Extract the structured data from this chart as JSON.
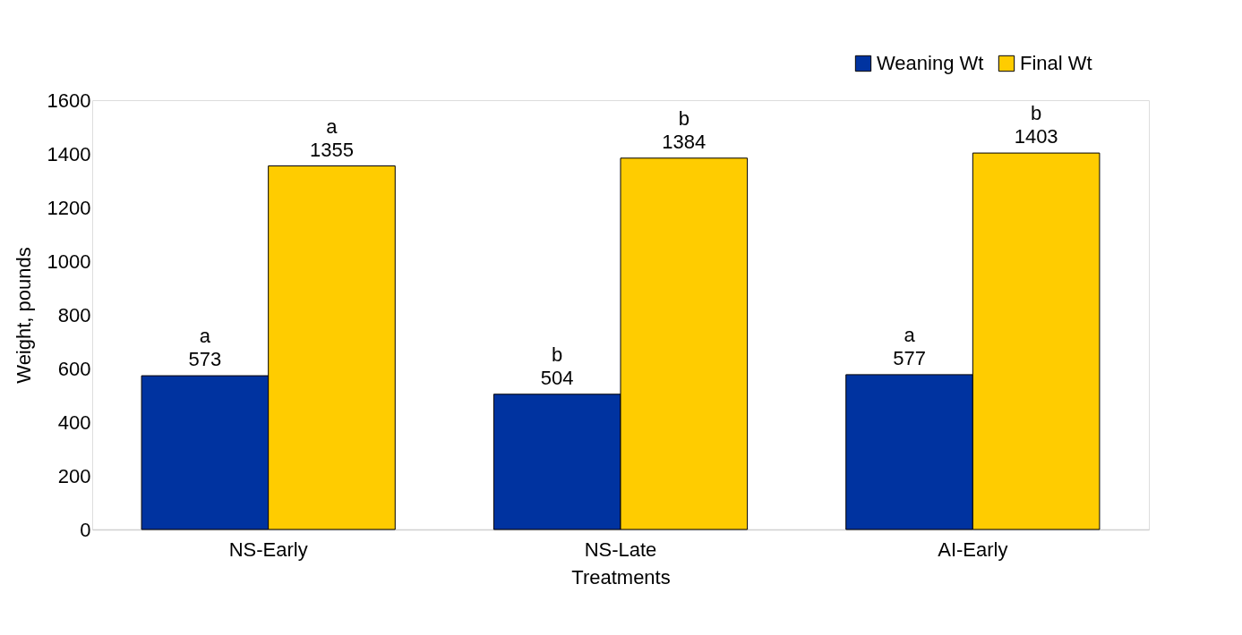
{
  "chart_data": {
    "type": "bar",
    "xlabel": "Treatments",
    "ylabel": "Weight, pounds",
    "categories": [
      "NS-Early",
      "NS-Late",
      "AI-Early"
    ],
    "series": [
      {
        "name": "Weaning Wt",
        "color": "#0033a0",
        "values": [
          573,
          504,
          577
        ],
        "value_labels": [
          "a\n573",
          "b\n504",
          "a\n577"
        ]
      },
      {
        "name": "Final Wt",
        "color": "#ffcc00",
        "values": [
          1355,
          1384,
          1403
        ],
        "value_labels": [
          "a\n1355",
          "b\n1384",
          "b\n1403"
        ]
      }
    ],
    "ylim": [
      0,
      1600
    ],
    "yticks": [
      0,
      200,
      400,
      600,
      800,
      1000,
      1200,
      1400,
      1600
    ],
    "grid": false,
    "legend": "top right"
  }
}
